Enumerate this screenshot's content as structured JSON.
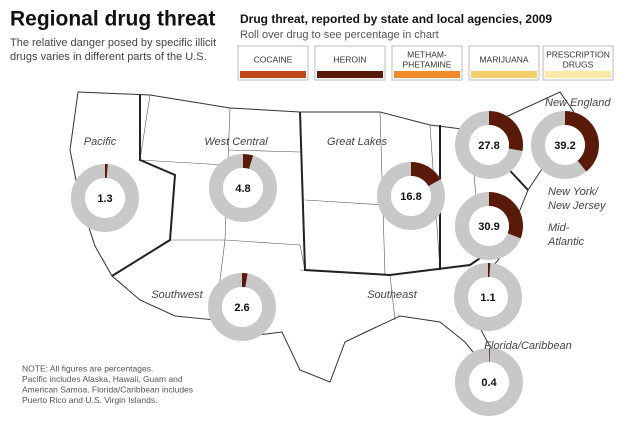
{
  "header": {
    "title": "Regional drug threat",
    "subtitle": [
      "The relative danger posed by specific illicit",
      "drugs varies in different parts of the U.S."
    ]
  },
  "chart_heading": "Drug threat, reported by state and local agencies, 2009",
  "instruction": "Roll over drug to see percentage in chart",
  "legend": [
    {
      "lines": [
        "COCAINE"
      ],
      "color": "#c0471b"
    },
    {
      "lines": [
        "HEROIN"
      ],
      "color": "#5a1a0a"
    },
    {
      "lines": [
        "METHAM-",
        "PHETAMINE"
      ],
      "color": "#f08a2a"
    },
    {
      "lines": [
        "MARIJUANA"
      ],
      "color": "#f4d06a"
    },
    {
      "lines": [
        "PRESCRIPTION",
        "DRUGS"
      ],
      "color": "#fbe9a6"
    }
  ],
  "regions": [
    {
      "name": [
        "Pacific"
      ],
      "value": 1.3
    },
    {
      "name": [
        "West Central"
      ],
      "value": 4.8
    },
    {
      "name": [
        "Great Lakes"
      ],
      "value": 16.8
    },
    {
      "name": [
        "New York/",
        "New Jersey"
      ],
      "value": 27.8
    },
    {
      "name": [
        "New England"
      ],
      "value": 39.2
    },
    {
      "name": [
        "Mid-",
        "Atlantic"
      ],
      "value": 30.9
    },
    {
      "name": [
        "Southwest"
      ],
      "value": 2.6
    },
    {
      "name": [
        "Southeast"
      ],
      "value": 1.1
    },
    {
      "name": [
        "Florida/Caribbean"
      ],
      "value": 0.4
    }
  ],
  "wedge_color": "#5a1a0a",
  "ring_color": "#c8c8c8",
  "note": [
    "NOTE: All figures are percentages.",
    "Pacific includes Alaska, Hawaii, Guam and",
    "American Samoa. Florida/Caribbean includes",
    "Puerto Rico and U.S. Virgin Islands."
  ]
}
